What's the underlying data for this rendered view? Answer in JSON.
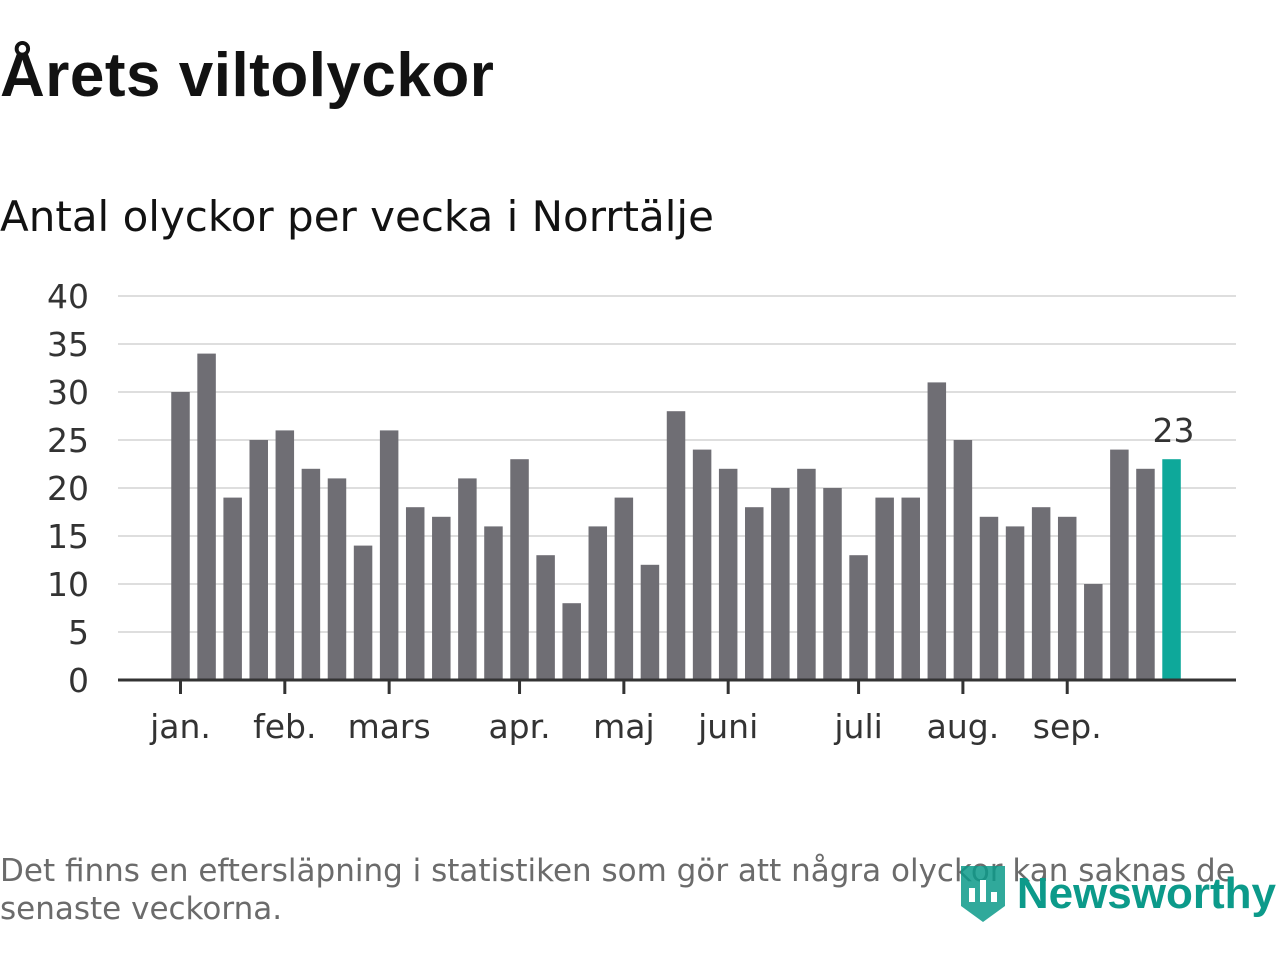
{
  "title": "Årets viltolyckor",
  "subtitle": "Antal olyckor per vecka i Norrtälje",
  "note": "Det finns en eftersläpning i statistiken som gör att några olyckor kan saknas de senaste veckorna.",
  "brand": {
    "name": "Newsworthy",
    "icon": "newsworthy-logo-icon"
  },
  "colors": {
    "bar": "#6f6e74",
    "highlight": "#0ea89a",
    "grid": "#dedede",
    "axis": "#333333",
    "brand": "#0c9a8a"
  },
  "chart_data": {
    "type": "bar",
    "title": "Årets viltolyckor",
    "subtitle": "Antal olyckor per vecka i Norrtälje",
    "xlabel": "",
    "ylabel": "",
    "ylim": [
      0,
      40
    ],
    "yticks": [
      0,
      5,
      10,
      15,
      20,
      25,
      30,
      35,
      40
    ],
    "grid": true,
    "month_labels": [
      {
        "label": "jan.",
        "week": 1
      },
      {
        "label": "feb.",
        "week": 5
      },
      {
        "label": "mars",
        "week": 9
      },
      {
        "label": "apr.",
        "week": 14
      },
      {
        "label": "maj",
        "week": 18
      },
      {
        "label": "juni",
        "week": 22
      },
      {
        "label": "juli",
        "week": 27
      },
      {
        "label": "aug.",
        "week": 31
      },
      {
        "label": "sep.",
        "week": 35
      }
    ],
    "values": [
      30,
      34,
      19,
      25,
      26,
      22,
      21,
      14,
      26,
      18,
      17,
      21,
      16,
      23,
      13,
      8,
      16,
      19,
      12,
      28,
      24,
      22,
      18,
      20,
      22,
      20,
      13,
      19,
      19,
      31,
      25,
      17,
      16,
      18,
      17,
      10,
      24,
      22,
      23
    ],
    "highlight": {
      "index": 38,
      "label": "23"
    }
  }
}
